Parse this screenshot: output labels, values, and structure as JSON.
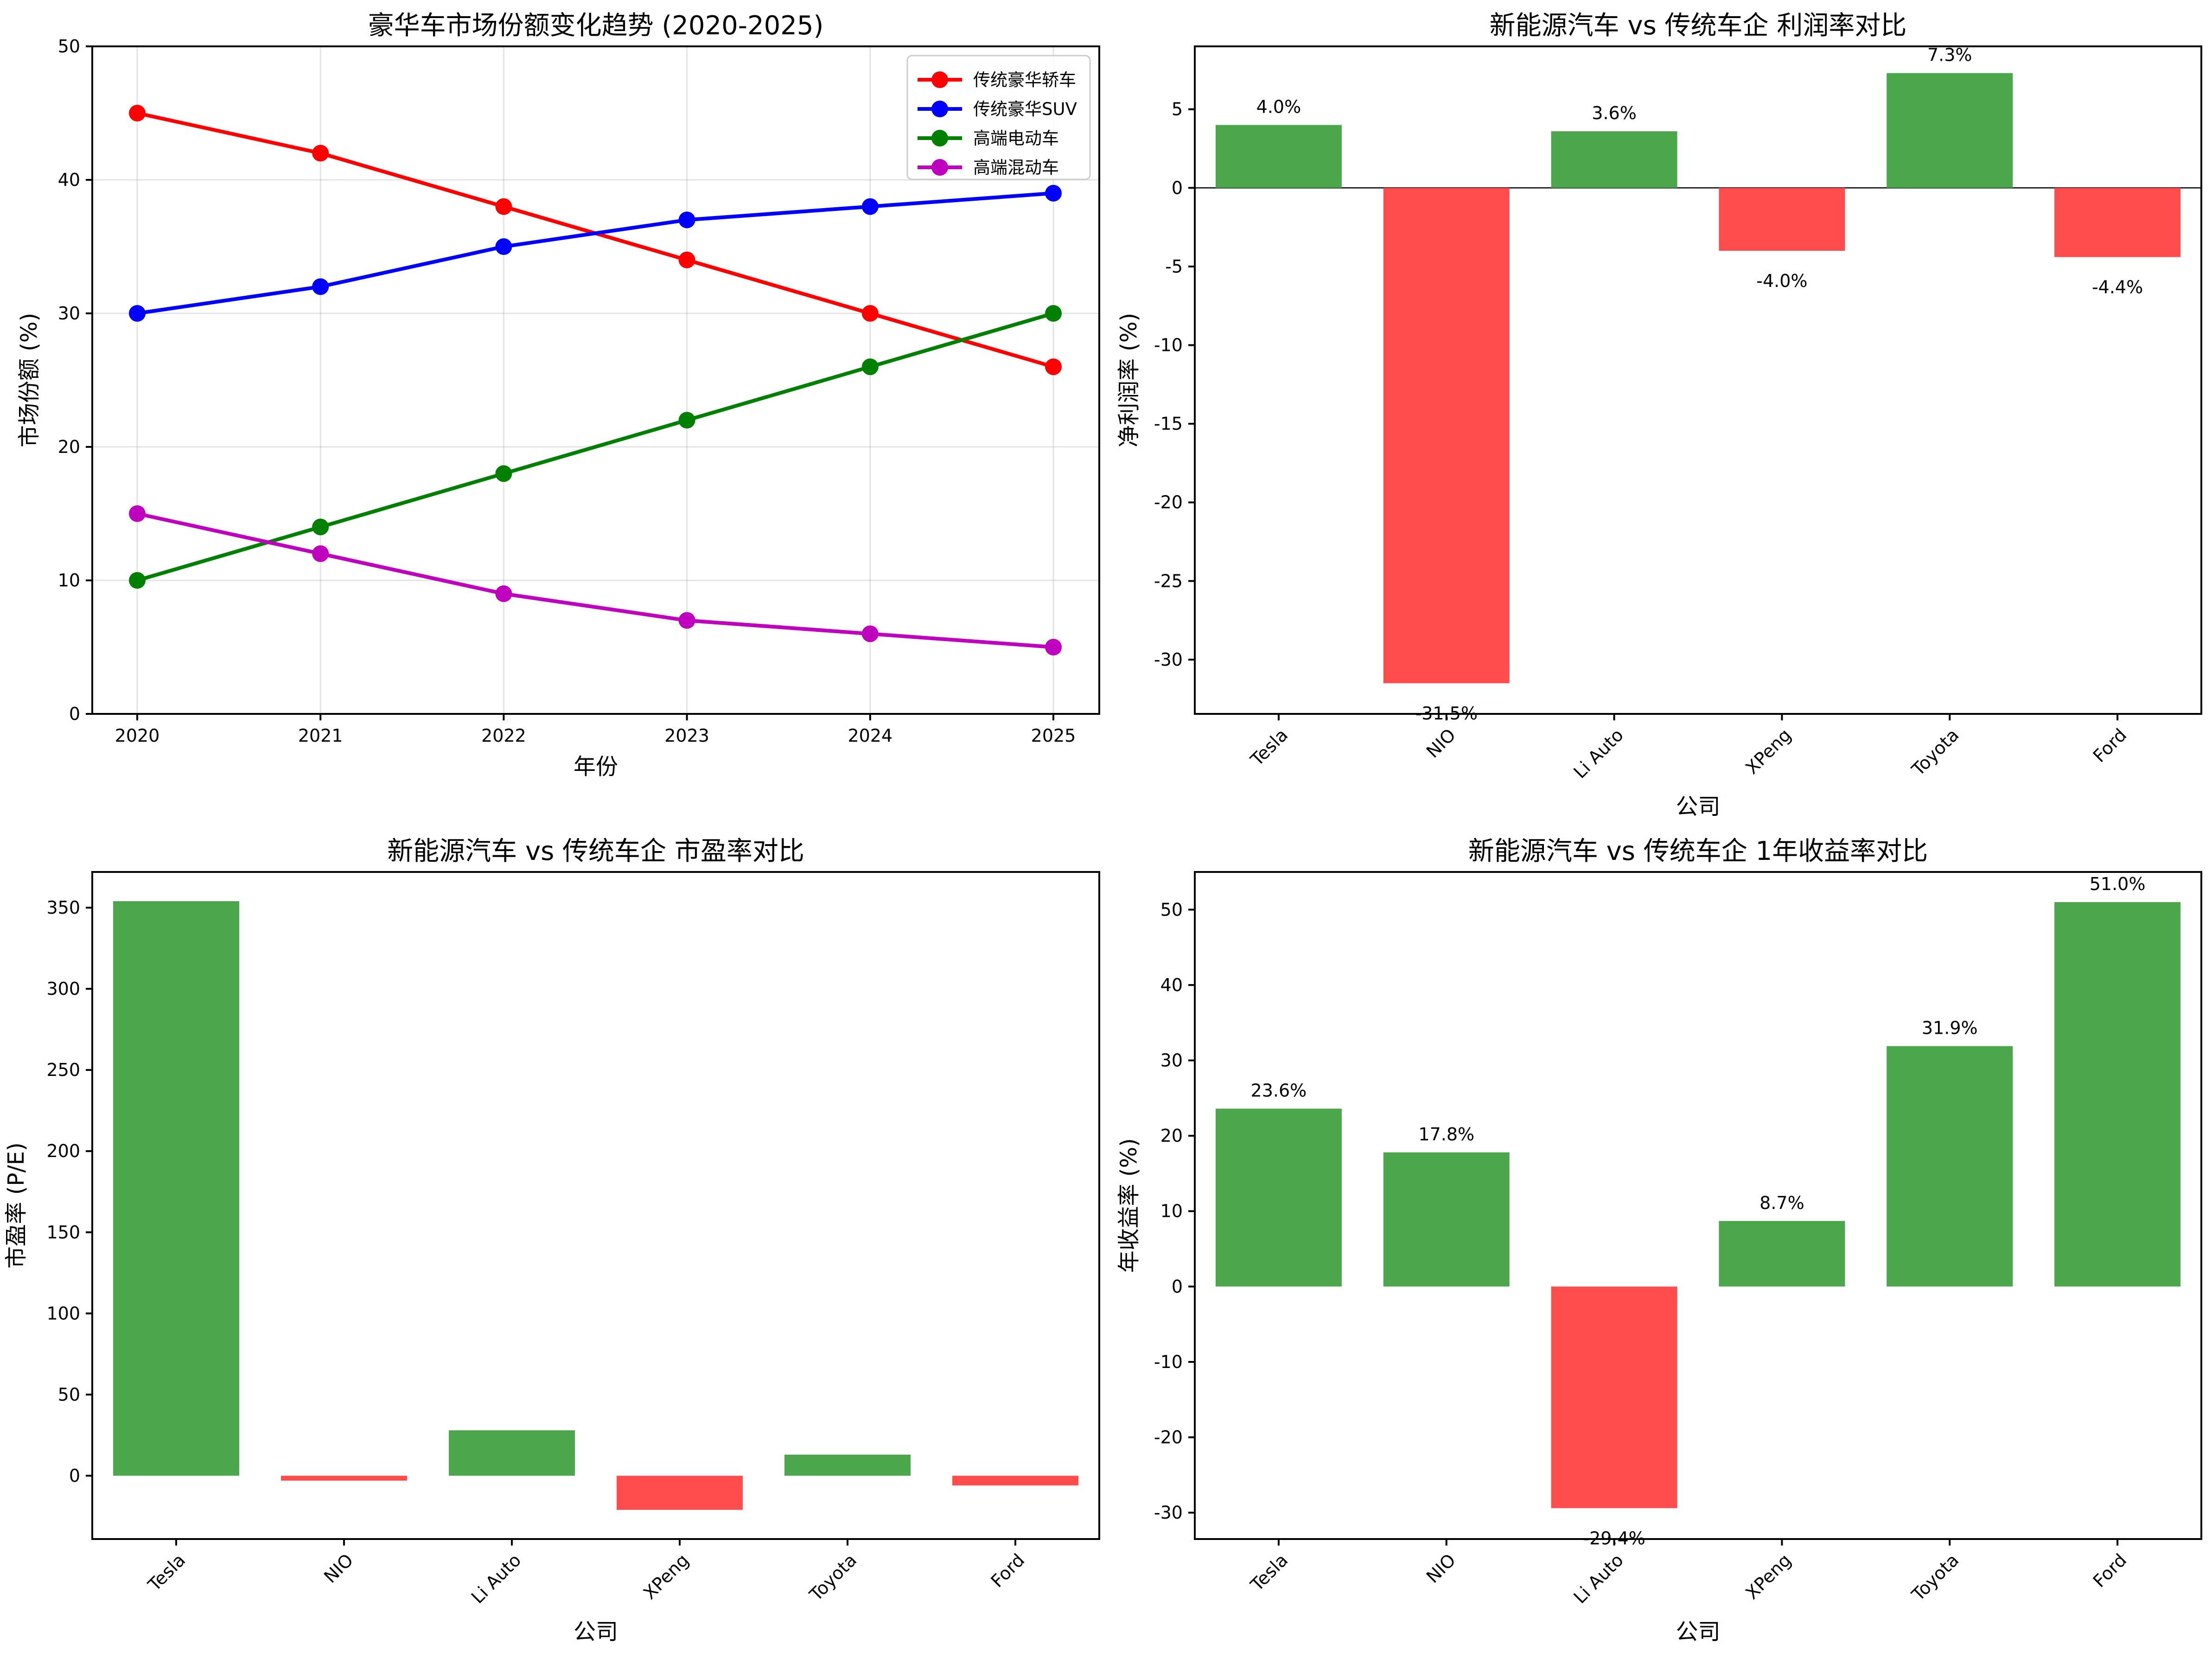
{
  "colors": {
    "positive_bar": "#4ca64c",
    "negative_bar": "#ff4c4c"
  },
  "chart_data": [
    {
      "type": "line",
      "title": "豪华车市场份额变化趋势 (2020-2025)",
      "xlabel": "年份",
      "ylabel": "市场份额 (%)",
      "x": [
        2020,
        2021,
        2022,
        2023,
        2024,
        2025
      ],
      "x_tick_labels": [
        "2020",
        "2021",
        "2022",
        "2023",
        "2024",
        "2025"
      ],
      "ylim": [
        0,
        50
      ],
      "y_ticks": [
        0,
        10,
        20,
        30,
        40,
        50
      ],
      "grid": true,
      "legend_position": "top-right",
      "series": [
        {
          "name": "传统豪华轿车",
          "color": "#ff0000",
          "values": [
            45,
            42,
            38,
            34,
            30,
            26
          ]
        },
        {
          "name": "传统豪华SUV",
          "color": "#0000ff",
          "values": [
            30,
            32,
            35,
            37,
            38,
            39
          ]
        },
        {
          "name": "高端电动车",
          "color": "#008000",
          "values": [
            10,
            14,
            18,
            22,
            26,
            30
          ]
        },
        {
          "name": "高端混动车",
          "color": "#bf00bf",
          "values": [
            15,
            12,
            9,
            7,
            6,
            5
          ]
        }
      ]
    },
    {
      "type": "bar",
      "title": "新能源汽车 vs 传统车企 利润率对比",
      "xlabel": "公司",
      "ylabel": "净利润率 (%)",
      "categories": [
        "Tesla",
        "NIO",
        "Li Auto",
        "XPeng",
        "Toyota",
        "Ford"
      ],
      "values": [
        4.0,
        -31.5,
        3.6,
        -4.0,
        7.3,
        -4.4
      ],
      "value_labels": [
        "4.0%",
        "-31.5%",
        "3.6%",
        "-4.0%",
        "7.3%",
        "-4.4%"
      ],
      "ylim": [
        -33.45,
        9.0
      ],
      "y_ticks": [
        -30,
        -25,
        -20,
        -15,
        -10,
        -5,
        0,
        5
      ],
      "zero_line": true
    },
    {
      "type": "bar",
      "title": "新能源汽车 vs 传统车企 市盈率对比",
      "xlabel": "公司",
      "ylabel": "市盈率 (P/E)",
      "categories": [
        "Tesla",
        "NIO",
        "Li Auto",
        "XPeng",
        "Toyota",
        "Ford"
      ],
      "values": [
        354,
        -3,
        28,
        -21,
        13,
        -6
      ],
      "ylim": [
        -39,
        372
      ],
      "y_ticks": [
        0,
        50,
        100,
        150,
        200,
        250,
        300,
        350
      ]
    },
    {
      "type": "bar",
      "title": "新能源汽车 vs 传统车企 1年收益率对比",
      "xlabel": "公司",
      "ylabel": "年收益率 (%)",
      "categories": [
        "Tesla",
        "NIO",
        "Li Auto",
        "XPeng",
        "Toyota",
        "Ford"
      ],
      "values": [
        23.6,
        17.8,
        -29.4,
        8.7,
        31.9,
        51.0
      ],
      "value_labels": [
        "23.6%",
        "17.8%",
        "-29.4%",
        "8.7%",
        "31.9%",
        "51.0%"
      ],
      "ylim": [
        -33.5,
        55.0
      ],
      "y_ticks": [
        -30,
        -20,
        -10,
        0,
        10,
        20,
        30,
        40,
        50
      ]
    }
  ]
}
